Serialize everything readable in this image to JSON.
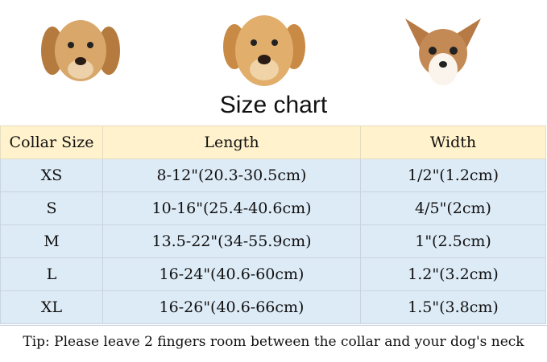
{
  "title": "Size chart",
  "columns": [
    "Collar Size",
    "Length",
    "Width"
  ],
  "rows": [
    {
      "size": "XS",
      "length": "8-12\"(20.3-30.5cm)",
      "width": "1/2\"(1.2cm)"
    },
    {
      "size": "S",
      "length": "10-16\"(25.4-40.6cm)",
      "width": "4/5\"(2cm)"
    },
    {
      "size": "M",
      "length": "13.5-22\"(34-55.9cm)",
      "width": "1\"(2.5cm)"
    },
    {
      "size": "L",
      "length": "16-24\"(40.6-60cm)",
      "width": "1.2\"(3.2cm)"
    },
    {
      "size": "XL",
      "length": "16-26\"(40.6-66cm)",
      "width": "1.5\"(3.8cm)"
    }
  ],
  "tip": "Tip: Please leave 2 fingers room between the collar and your dog's neck",
  "colors": {
    "header_bg": "#fff2cc",
    "row_bg": "#ddebf7"
  }
}
